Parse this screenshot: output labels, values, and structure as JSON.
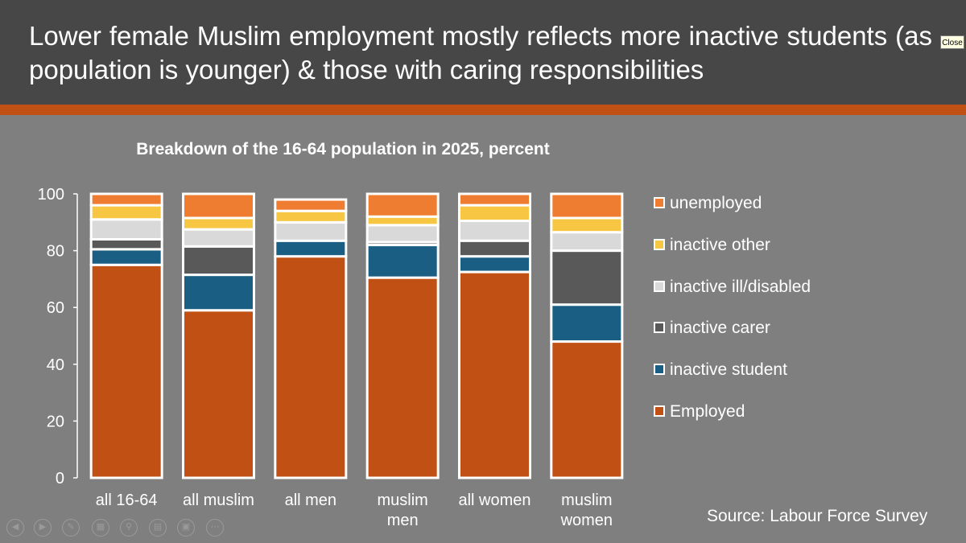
{
  "slide": {
    "title": "Lower female Muslim employment mostly reflects more inactive students (as population is younger) & those with caring responsibilities",
    "close_label": "Close",
    "source": "Source: Labour Force Survey"
  },
  "colors": {
    "header_bg": "#474747",
    "accent_stripe": "#c15015",
    "slide_bg": "#7f7f7f"
  },
  "chart_data": {
    "type": "bar",
    "stacked": true,
    "title": "Breakdown of the 16-64 population in 2025, percent",
    "xlabel": "",
    "ylabel": "",
    "ylim": [
      0,
      100
    ],
    "yticks": [
      "0",
      "20",
      "40",
      "60",
      "80",
      "100"
    ],
    "categories": [
      [
        "all 16-64"
      ],
      [
        "all muslim"
      ],
      [
        "all men"
      ],
      [
        "muslim",
        "men"
      ],
      [
        "all women"
      ],
      [
        "muslim",
        "women"
      ]
    ],
    "series": [
      {
        "name": "Employed",
        "color": "#c15015",
        "values": [
          75,
          59,
          78,
          70.5,
          72.5,
          48
        ]
      },
      {
        "name": "inactive student",
        "color": "#1a5e84",
        "values": [
          5.5,
          12.5,
          5.5,
          11.5,
          5.5,
          13
        ]
      },
      {
        "name": "inactive carer",
        "color": "#595959",
        "values": [
          3.5,
          10,
          0,
          1,
          5.5,
          19
        ]
      },
      {
        "name": "inactive ill/disabled",
        "color": "#d9d9d9",
        "values": [
          7,
          6,
          6.5,
          6,
          7,
          6.5
        ]
      },
      {
        "name": "inactive other",
        "color": "#f7c744",
        "values": [
          5,
          4,
          4,
          3,
          5.5,
          5
        ]
      },
      {
        "name": "unemployed",
        "color": "#ee7d31",
        "values": [
          4,
          8.5,
          4,
          8,
          4,
          8.5
        ]
      }
    ],
    "legend_order": [
      "unemployed",
      "inactive other",
      "inactive ill/disabled",
      "inactive carer",
      "inactive student",
      "Employed"
    ],
    "legend_position": "right"
  },
  "nav_icons": [
    "prev-icon",
    "next-icon",
    "pen-icon",
    "slides-icon",
    "zoom-icon",
    "subtitles-icon",
    "screen-icon",
    "more-icon"
  ]
}
